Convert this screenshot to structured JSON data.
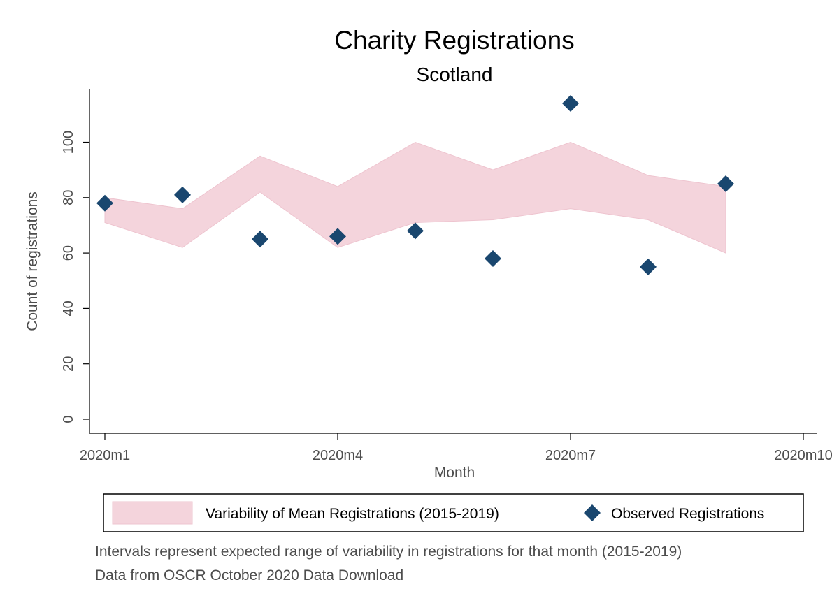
{
  "chart_data": {
    "type": "area",
    "title": "Charity Registrations",
    "subtitle": "Scotland",
    "xlabel": "Month",
    "ylabel": "Count of registrations",
    "x_ticks": [
      "2020m1",
      "2020m4",
      "2020m7",
      "2020m10"
    ],
    "x_tick_index": [
      1,
      4,
      7,
      10
    ],
    "xlim": [
      1,
      10
    ],
    "y_ticks": [
      0,
      20,
      40,
      60,
      80,
      100
    ],
    "ylim": [
      0,
      114
    ],
    "grid": false,
    "months": [
      1,
      2,
      3,
      4,
      5,
      6,
      7,
      8,
      9
    ],
    "series": [
      {
        "name": "Variability of Mean Registrations (2015-2019)",
        "kind": "band",
        "color": "#f4d4dc",
        "upper": [
          80,
          76,
          95,
          84,
          100,
          90,
          100,
          88,
          84
        ],
        "lower": [
          71,
          62,
          82,
          62,
          71,
          72,
          76,
          72,
          60
        ]
      },
      {
        "name": "Observed Registrations",
        "kind": "scatter",
        "marker": "diamond",
        "color": "#1a476f",
        "values": [
          78,
          81,
          65,
          66,
          68,
          58,
          114,
          55,
          85
        ]
      }
    ],
    "legend_position": "bottom",
    "notes": [
      "Intervals represent expected range of variability in registrations for that month (2015-2019)",
      "Data from OSCR October 2020 Data Download"
    ]
  }
}
